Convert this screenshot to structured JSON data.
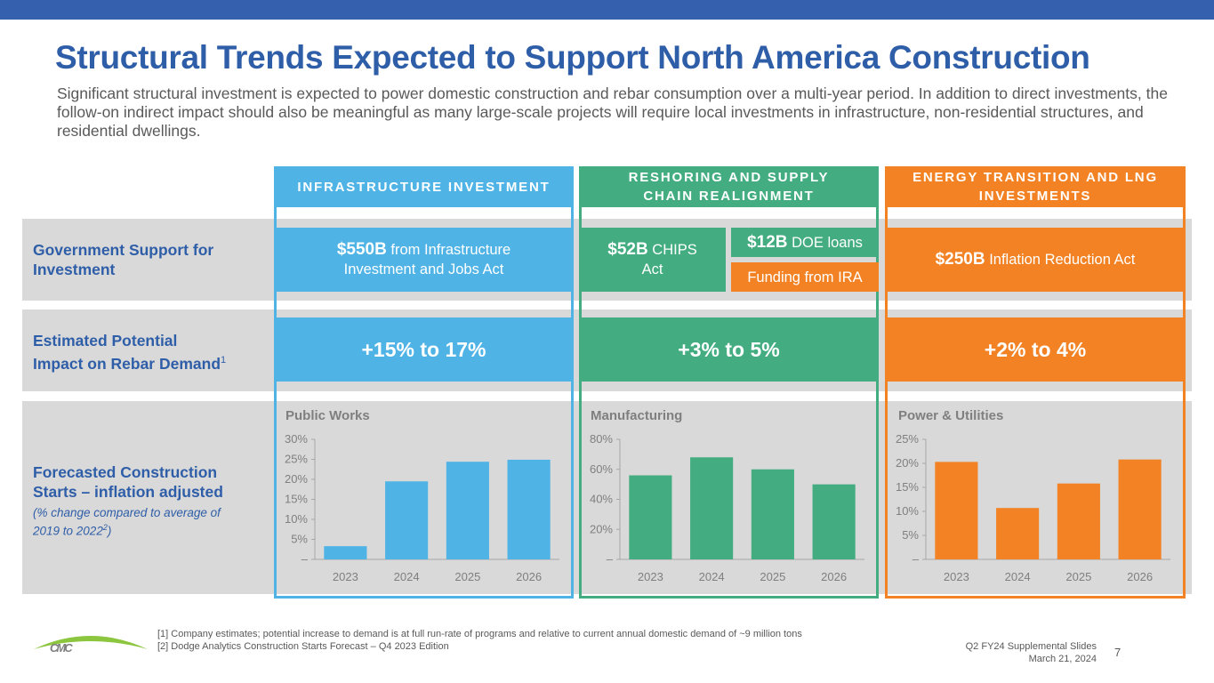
{
  "title": "Structural Trends Expected to Support North America Construction",
  "subtitle": "Significant structural investment is expected to power domestic construction and rebar consumption over a multi-year period.  In addition to direct investments, the follow-on indirect impact should also be meaningful as many large-scale projects will require local investments in infrastructure, non-residential structures, and residential dwellings.",
  "rows": {
    "government": "Government Support for Investment",
    "impact": "Estimated Potential Impact on Rebar Demand",
    "impact_sup": "1",
    "forecast": "Forecasted Construction Starts – inflation adjusted",
    "forecast_note": "(% change compared to average of 2019 to 2022",
    "forecast_note_sup": "2",
    "forecast_note_end": ")"
  },
  "columns": [
    {
      "header": "INFRASTRUCTURE INVESTMENT",
      "color": "#4fb3e6",
      "gov_amount": "$550B",
      "gov_text": " from Infrastructure Investment and Jobs Act",
      "impact": "+15% to 17%"
    },
    {
      "header": "RESHORING AND SUPPLY CHAIN REALIGNMENT",
      "color": "#43ad81",
      "gov_amount": "$52B",
      "gov_text": " CHIPS Act",
      "gov2_amount": "$12B",
      "gov2_text": " DOE loans",
      "gov3_text": "Funding from IRA",
      "impact": "+3% to 5%"
    },
    {
      "header": "ENERGY TRANSITION AND LNG INVESTMENTS",
      "color": "#f28223",
      "gov_amount": "$250B",
      "gov_text": " Inflation Reduction Act",
      "impact": "+2% to 4%"
    }
  ],
  "chart_data": [
    {
      "type": "bar",
      "title": "Public Works",
      "categories": [
        "2023",
        "2024",
        "2025",
        "2026"
      ],
      "values": [
        3.3,
        19.5,
        24.4,
        24.9
      ],
      "ylim": [
        0,
        30
      ],
      "yticks": [
        "–",
        "5%",
        "10%",
        "15%",
        "20%",
        "25%",
        "30%"
      ],
      "color": "#4fb3e6"
    },
    {
      "type": "bar",
      "title": "Manufacturing",
      "categories": [
        "2023",
        "2024",
        "2025",
        "2026"
      ],
      "values": [
        56,
        68,
        60,
        50
      ],
      "ylim": [
        0,
        80
      ],
      "yticks": [
        "–",
        "20%",
        "40%",
        "60%",
        "80%"
      ],
      "color": "#43ad81"
    },
    {
      "type": "bar",
      "title": "Power & Utilities",
      "categories": [
        "2023",
        "2024",
        "2025",
        "2026"
      ],
      "values": [
        20.3,
        10.7,
        15.8,
        20.8
      ],
      "ylim": [
        0,
        25
      ],
      "yticks": [
        "–",
        "5%",
        "10%",
        "15%",
        "20%",
        "25%"
      ],
      "color": "#f28223"
    }
  ],
  "footer": {
    "logo": "CMC",
    "note1": "[1] Company estimates; potential increase to demand is at full run-rate of programs and relative to current annual domestic demand of ~9 million tons",
    "note2": "[2] Dodge Analytics Construction Starts Forecast – Q4 2023 Edition",
    "deck": "Q2 FY24 Supplemental Slides",
    "date": "March 21, 2024",
    "page": "7"
  }
}
